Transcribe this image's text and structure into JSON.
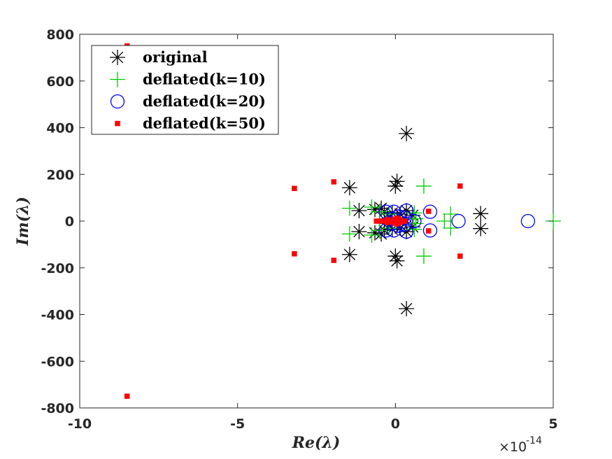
{
  "chart_data": {
    "type": "scatter",
    "title": "",
    "xlabel": "Re(λ)",
    "ylabel": "Im(λ)",
    "x_scale_label": "×10",
    "x_scale_exponent": "-14",
    "xlim": [
      -10,
      5
    ],
    "ylim": [
      -800,
      800
    ],
    "xticks": [
      -10,
      -5,
      0,
      5
    ],
    "yticks": [
      -800,
      -600,
      -400,
      -200,
      0,
      200,
      400,
      600,
      800
    ],
    "xtick_labels": [
      "-10",
      "-5",
      "0",
      "5"
    ],
    "ytick_labels": [
      "-800",
      "-600",
      "-400",
      "-200",
      "0",
      "200",
      "400",
      "600",
      "800"
    ],
    "grid": false,
    "legend_position": "top-left",
    "series": [
      {
        "name": "original",
        "marker": "asterisk",
        "color": "#000000",
        "points": [
          [
            0.35,
            375
          ],
          [
            0.35,
            -375
          ],
          [
            0.05,
            170
          ],
          [
            0.05,
            -170
          ],
          [
            0.0,
            150
          ],
          [
            0.0,
            -150
          ],
          [
            -1.45,
            143
          ],
          [
            -1.45,
            -143
          ],
          [
            2.7,
            32
          ],
          [
            2.7,
            -32
          ],
          [
            -1.15,
            45
          ],
          [
            -1.15,
            -45
          ],
          [
            -0.65,
            50
          ],
          [
            -0.65,
            -50
          ],
          [
            -0.45,
            55
          ],
          [
            -0.45,
            -55
          ],
          [
            -0.35,
            40
          ],
          [
            -0.35,
            -40
          ],
          [
            -0.1,
            35
          ],
          [
            -0.1,
            -35
          ],
          [
            0.15,
            30
          ],
          [
            0.15,
            -30
          ],
          [
            0.35,
            45
          ],
          [
            0.35,
            -45
          ],
          [
            0.55,
            25
          ],
          [
            0.55,
            -25
          ],
          [
            -0.25,
            10
          ],
          [
            -0.25,
            -10
          ],
          [
            0.05,
            15
          ],
          [
            0.05,
            -15
          ]
        ]
      },
      {
        "name": "deflated(k=10)",
        "marker": "plus",
        "color": "#00cc00",
        "points": [
          [
            5.0,
            0
          ],
          [
            0.9,
            150
          ],
          [
            0.9,
            -150
          ],
          [
            1.75,
            30
          ],
          [
            1.75,
            -30
          ],
          [
            1.55,
            0
          ],
          [
            -1.45,
            55
          ],
          [
            -1.45,
            -55
          ],
          [
            -0.75,
            60
          ],
          [
            -0.75,
            -60
          ],
          [
            -0.5,
            40
          ],
          [
            -0.5,
            -40
          ],
          [
            -0.2,
            30
          ],
          [
            -0.2,
            -30
          ],
          [
            0.6,
            35
          ],
          [
            0.6,
            -35
          ],
          [
            0.65,
            10
          ],
          [
            0.65,
            -10
          ]
        ]
      },
      {
        "name": "deflated(k=20)",
        "marker": "circle",
        "color": "#0000ff",
        "points": [
          [
            4.2,
            0
          ],
          [
            2.0,
            0
          ],
          [
            1.1,
            40
          ],
          [
            1.1,
            -40
          ],
          [
            0.35,
            45
          ],
          [
            0.35,
            -45
          ],
          [
            0.3,
            15
          ],
          [
            0.3,
            -15
          ],
          [
            0.6,
            0
          ],
          [
            -0.05,
            40
          ],
          [
            -0.05,
            -40
          ],
          [
            -0.3,
            40
          ],
          [
            -0.3,
            -40
          ],
          [
            -0.1,
            10
          ],
          [
            -0.1,
            -10
          ],
          [
            0.1,
            20
          ],
          [
            0.1,
            -20
          ]
        ]
      },
      {
        "name": "deflated(k=50)",
        "marker": "square",
        "color": "#ff0000",
        "points": [
          [
            -8.5,
            750
          ],
          [
            -8.5,
            -750
          ],
          [
            -3.2,
            140
          ],
          [
            -3.2,
            -140
          ],
          [
            -1.95,
            168
          ],
          [
            -1.95,
            -168
          ],
          [
            2.05,
            150
          ],
          [
            2.05,
            -150
          ],
          [
            1.05,
            42
          ],
          [
            1.05,
            -42
          ],
          [
            -0.6,
            0
          ],
          [
            -0.5,
            0
          ],
          [
            -0.4,
            0
          ],
          [
            -0.3,
            0
          ],
          [
            -0.2,
            0
          ],
          [
            -0.1,
            0
          ],
          [
            0.0,
            0
          ],
          [
            0.1,
            0
          ],
          [
            0.2,
            0
          ],
          [
            0.3,
            0
          ],
          [
            -0.25,
            6
          ],
          [
            -0.25,
            -6
          ],
          [
            -0.05,
            8
          ],
          [
            -0.05,
            -8
          ],
          [
            0.15,
            6
          ],
          [
            0.15,
            -6
          ],
          [
            0.05,
            12
          ],
          [
            0.05,
            -12
          ]
        ]
      }
    ]
  }
}
